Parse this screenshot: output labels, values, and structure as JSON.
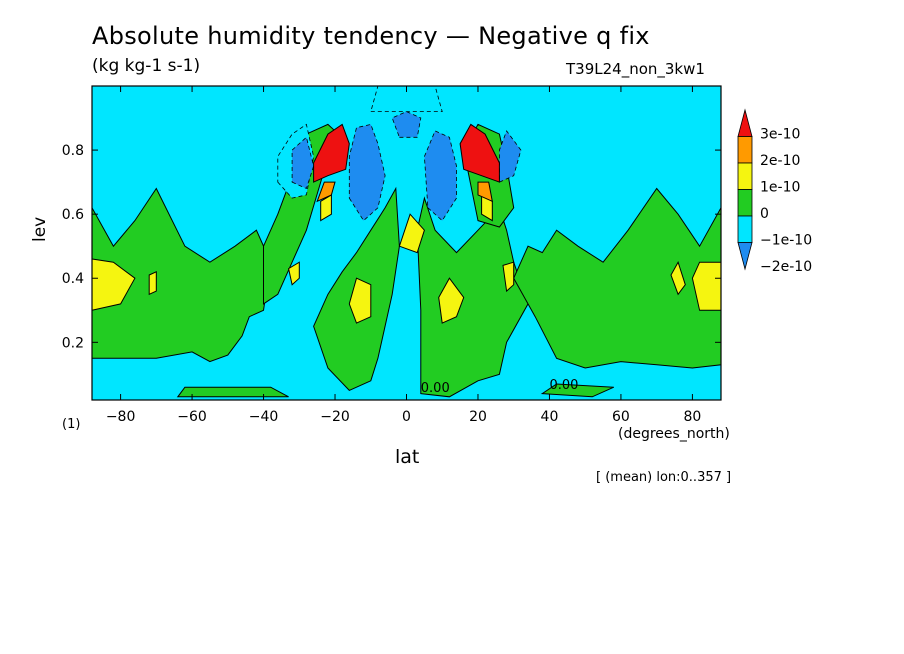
{
  "header": {
    "title": "Absolute humidity tendency — Negative q fix",
    "units": "(kg kg-1 s-1)",
    "run_id": "T39L24_non_3kw1"
  },
  "footer": {
    "count_label": "(1)",
    "mean_label": "[ (mean) lon:0..357 ]"
  },
  "colors": {
    "c_m2": "#1e8cf0",
    "c_m1": "#00e6ff",
    "c_0": "#22cc22",
    "c_1": "#f5f510",
    "c_2": "#ff9a00",
    "c_3": "#ee1111"
  },
  "chart_data": {
    "type": "heatmap",
    "title": "Absolute humidity tendency — Negative q fix",
    "units": "(kg kg-1 s-1)",
    "xlabel": "lat",
    "xunit": "(degrees_north)",
    "ylabel": "lev",
    "xlim": [
      -88,
      88
    ],
    "ylim": [
      1.0,
      0.02
    ],
    "xticks": [
      -80,
      -60,
      -40,
      -20,
      0,
      20,
      40,
      60,
      80
    ],
    "yticks": [
      0.2,
      0.4,
      0.6,
      0.8
    ],
    "legend_position": "right",
    "color_levels": [
      {
        "label": "3e-10",
        "color_key": "c_3"
      },
      {
        "label": "2e-10",
        "color_key": "c_2"
      },
      {
        "label": "1e-10",
        "color_key": "c_1"
      },
      {
        "label": "0",
        "color_key": "c_0"
      },
      {
        "label": "−1e-10",
        "color_key": "c_m1"
      },
      {
        "label": "−2e-10",
        "color_key": "c_m2"
      }
    ],
    "contour_labels": [
      "0.00",
      "0.00"
    ],
    "regions": [
      {
        "level": 0,
        "poly": [
          [
            -88,
            0.15
          ],
          [
            -70,
            0.15
          ],
          [
            -60,
            0.17
          ],
          [
            -55,
            0.14
          ],
          [
            -50,
            0.16
          ],
          [
            -46,
            0.22
          ],
          [
            -44,
            0.28
          ],
          [
            -40,
            0.3
          ],
          [
            -38,
            0.45
          ],
          [
            -42,
            0.55
          ],
          [
            -48,
            0.5
          ],
          [
            -55,
            0.45
          ],
          [
            -62,
            0.5
          ],
          [
            -70,
            0.68
          ],
          [
            -76,
            0.58
          ],
          [
            -82,
            0.5
          ],
          [
            -88,
            0.62
          ]
        ]
      },
      {
        "level": 0,
        "poly": [
          [
            -40,
            0.32
          ],
          [
            -36,
            0.35
          ],
          [
            -32,
            0.45
          ],
          [
            -28,
            0.55
          ],
          [
            -24,
            0.7
          ],
          [
            -22,
            0.78
          ],
          [
            -20,
            0.86
          ],
          [
            -22,
            0.88
          ],
          [
            -28,
            0.85
          ],
          [
            -32,
            0.72
          ],
          [
            -36,
            0.6
          ],
          [
            -40,
            0.5
          ]
        ]
      },
      {
        "level": 0,
        "poly": [
          [
            -22,
            0.12
          ],
          [
            -16,
            0.05
          ],
          [
            -10,
            0.08
          ],
          [
            -8,
            0.15
          ],
          [
            -4,
            0.35
          ],
          [
            -2,
            0.5
          ],
          [
            -3,
            0.68
          ],
          [
            -6,
            0.62
          ],
          [
            -10,
            0.55
          ],
          [
            -14,
            0.48
          ],
          [
            -18,
            0.42
          ],
          [
            -22,
            0.35
          ],
          [
            -26,
            0.25
          ]
        ]
      },
      {
        "level": 0,
        "poly": [
          [
            4,
            0.04
          ],
          [
            12,
            0.03
          ],
          [
            20,
            0.08
          ],
          [
            26,
            0.1
          ],
          [
            28,
            0.2
          ],
          [
            34,
            0.32
          ],
          [
            30,
            0.45
          ],
          [
            28,
            0.55
          ],
          [
            26,
            0.62
          ],
          [
            20,
            0.55
          ],
          [
            14,
            0.48
          ],
          [
            8,
            0.55
          ],
          [
            5,
            0.65
          ],
          [
            3,
            0.55
          ],
          [
            4,
            0.3
          ]
        ]
      },
      {
        "level": 0,
        "poly": [
          [
            -64,
            0.03
          ],
          [
            -33,
            0.03
          ],
          [
            -38,
            0.06
          ],
          [
            -62,
            0.06
          ]
        ]
      },
      {
        "level": 0,
        "poly": [
          [
            38,
            0.04
          ],
          [
            52,
            0.03
          ],
          [
            58,
            0.06
          ],
          [
            42,
            0.07
          ]
        ]
      },
      {
        "level": 0,
        "poly": [
          [
            30,
            0.4
          ],
          [
            36,
            0.28
          ],
          [
            42,
            0.15
          ],
          [
            50,
            0.12
          ],
          [
            60,
            0.14
          ],
          [
            70,
            0.13
          ],
          [
            80,
            0.12
          ],
          [
            88,
            0.13
          ],
          [
            88,
            0.62
          ],
          [
            82,
            0.5
          ],
          [
            76,
            0.6
          ],
          [
            70,
            0.68
          ],
          [
            62,
            0.55
          ],
          [
            55,
            0.45
          ],
          [
            48,
            0.5
          ],
          [
            42,
            0.55
          ],
          [
            38,
            0.48
          ],
          [
            34,
            0.5
          ]
        ]
      },
      {
        "level": 0,
        "poly": [
          [
            20,
            0.58
          ],
          [
            26,
            0.56
          ],
          [
            30,
            0.62
          ],
          [
            28,
            0.75
          ],
          [
            26,
            0.85
          ],
          [
            20,
            0.88
          ],
          [
            16,
            0.8
          ]
        ]
      },
      {
        "level": -1,
        "poly": [
          [
            -36,
            0.7
          ],
          [
            -32,
            0.65
          ],
          [
            -28,
            0.66
          ],
          [
            -26,
            0.78
          ],
          [
            -28,
            0.88
          ],
          [
            -32,
            0.85
          ],
          [
            -36,
            0.78
          ]
        ]
      },
      {
        "level": -1,
        "poly": [
          [
            -10,
            0.92
          ],
          [
            10,
            0.92
          ],
          [
            8,
            1.0
          ],
          [
            -8,
            1.0
          ]
        ]
      },
      {
        "level": 1,
        "poly": [
          [
            -88,
            0.3
          ],
          [
            -80,
            0.32
          ],
          [
            -76,
            0.4
          ],
          [
            -82,
            0.45
          ],
          [
            -88,
            0.46
          ]
        ]
      },
      {
        "level": 1,
        "poly": [
          [
            -14,
            0.26
          ],
          [
            -10,
            0.28
          ],
          [
            -10,
            0.38
          ],
          [
            -14,
            0.4
          ],
          [
            -16,
            0.32
          ]
        ]
      },
      {
        "level": 1,
        "poly": [
          [
            10,
            0.26
          ],
          [
            14,
            0.28
          ],
          [
            16,
            0.34
          ],
          [
            12,
            0.4
          ],
          [
            9,
            0.34
          ]
        ]
      },
      {
        "level": 1,
        "poly": [
          [
            -2,
            0.5
          ],
          [
            3,
            0.48
          ],
          [
            5,
            0.55
          ],
          [
            1,
            0.6
          ]
        ]
      },
      {
        "level": 1,
        "poly": [
          [
            28,
            0.36
          ],
          [
            30,
            0.38
          ],
          [
            30,
            0.45
          ],
          [
            27,
            0.44
          ]
        ]
      },
      {
        "level": 1,
        "poly": [
          [
            -32,
            0.38
          ],
          [
            -30,
            0.4
          ],
          [
            -30,
            0.45
          ],
          [
            -33,
            0.43
          ]
        ]
      },
      {
        "level": 1,
        "poly": [
          [
            -72,
            0.35
          ],
          [
            -70,
            0.36
          ],
          [
            -70,
            0.42
          ],
          [
            -72,
            0.41
          ]
        ]
      },
      {
        "level": 1,
        "poly": [
          [
            76,
            0.35
          ],
          [
            78,
            0.38
          ],
          [
            76,
            0.45
          ],
          [
            74,
            0.41
          ]
        ]
      },
      {
        "level": 1,
        "poly": [
          [
            82,
            0.3
          ],
          [
            88,
            0.3
          ],
          [
            88,
            0.45
          ],
          [
            82,
            0.45
          ],
          [
            80,
            0.4
          ]
        ]
      },
      {
        "level": 1,
        "poly": [
          [
            -24,
            0.58
          ],
          [
            -21,
            0.6
          ],
          [
            -21,
            0.66
          ],
          [
            -24,
            0.64
          ]
        ]
      },
      {
        "level": 1,
        "poly": [
          [
            21,
            0.6
          ],
          [
            24,
            0.58
          ],
          [
            24,
            0.64
          ],
          [
            21,
            0.66
          ]
        ]
      },
      {
        "level": -2,
        "poly": [
          [
            -16,
            0.65
          ],
          [
            -12,
            0.58
          ],
          [
            -8,
            0.62
          ],
          [
            -6,
            0.72
          ],
          [
            -8,
            0.82
          ],
          [
            -10,
            0.88
          ],
          [
            -14,
            0.87
          ],
          [
            -16,
            0.78
          ]
        ]
      },
      {
        "level": -2,
        "poly": [
          [
            6,
            0.62
          ],
          [
            10,
            0.58
          ],
          [
            14,
            0.65
          ],
          [
            14,
            0.75
          ],
          [
            12,
            0.84
          ],
          [
            8,
            0.86
          ],
          [
            5,
            0.78
          ]
        ]
      },
      {
        "level": -2,
        "poly": [
          [
            -32,
            0.7
          ],
          [
            -28,
            0.68
          ],
          [
            -26,
            0.75
          ],
          [
            -28,
            0.84
          ],
          [
            -32,
            0.8
          ]
        ]
      },
      {
        "level": -2,
        "poly": [
          [
            26,
            0.7
          ],
          [
            30,
            0.72
          ],
          [
            32,
            0.8
          ],
          [
            28,
            0.86
          ],
          [
            26,
            0.8
          ]
        ]
      },
      {
        "level": -2,
        "poly": [
          [
            -2,
            0.84
          ],
          [
            3,
            0.84
          ],
          [
            4,
            0.9
          ],
          [
            0,
            0.92
          ],
          [
            -4,
            0.9
          ]
        ]
      },
      {
        "level": 2,
        "poly": [
          [
            -25,
            0.64
          ],
          [
            -21,
            0.66
          ],
          [
            -20,
            0.7
          ],
          [
            -23,
            0.7
          ]
        ]
      },
      {
        "level": 2,
        "poly": [
          [
            20,
            0.66
          ],
          [
            24,
            0.64
          ],
          [
            23,
            0.7
          ],
          [
            20,
            0.7
          ]
        ]
      },
      {
        "level": 3,
        "poly": [
          [
            -26,
            0.7
          ],
          [
            -22,
            0.72
          ],
          [
            -17,
            0.74
          ],
          [
            -16,
            0.82
          ],
          [
            -18,
            0.88
          ],
          [
            -22,
            0.85
          ],
          [
            -26,
            0.76
          ]
        ]
      },
      {
        "level": 3,
        "poly": [
          [
            16,
            0.74
          ],
          [
            21,
            0.72
          ],
          [
            26,
            0.7
          ],
          [
            26,
            0.76
          ],
          [
            22,
            0.85
          ],
          [
            18,
            0.88
          ],
          [
            15,
            0.82
          ]
        ]
      }
    ]
  }
}
